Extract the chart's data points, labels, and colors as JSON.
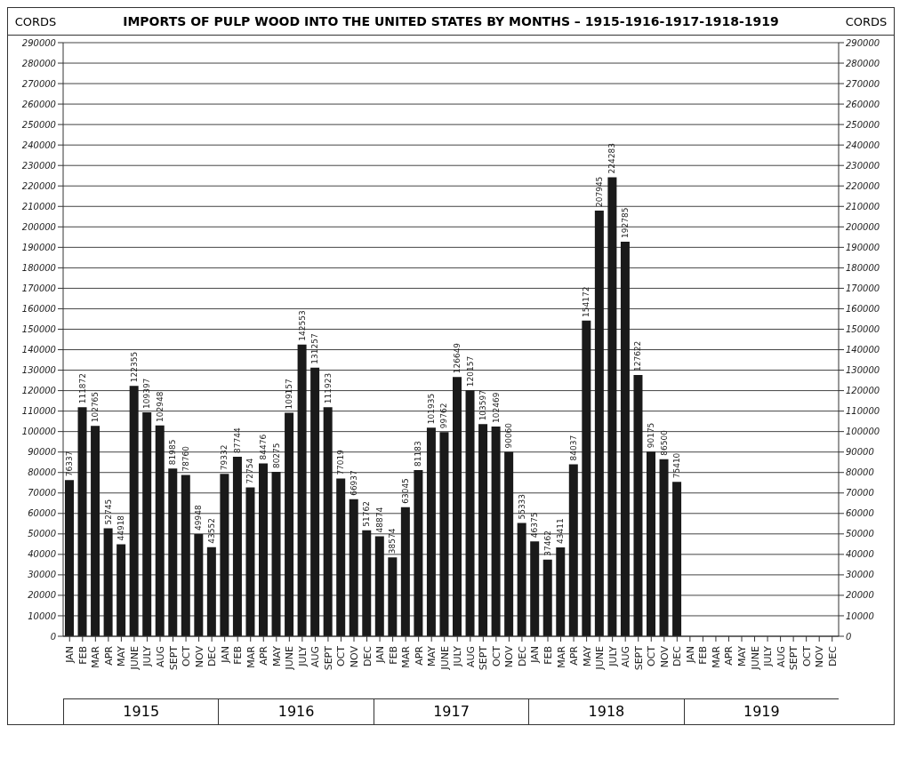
{
  "chart_data": {
    "type": "bar",
    "title": "IMPORTS OF PULP WOOD INTO THE UNITED STATES BY MONTHS – 1915-1916-1917-1918-1919",
    "ylabel": "CORDS",
    "y2label": "CORDS",
    "categories": [
      "JAN",
      "FEB",
      "MAR",
      "APR",
      "MAY",
      "JUNE",
      "JULY",
      "AUG",
      "SEPT",
      "OCT",
      "NOV",
      "DEC",
      "JAN",
      "FEB",
      "MAR",
      "APR",
      "MAY",
      "JUNE",
      "JULY",
      "AUG",
      "SEPT",
      "OCT",
      "NOV",
      "DEC",
      "JAN",
      "FEB",
      "MAR",
      "APR",
      "MAY",
      "JUNE",
      "JULY",
      "AUG",
      "SEPT",
      "OCT",
      "NOV",
      "DEC",
      "JAN",
      "FEB",
      "MAR",
      "APR",
      "MAY",
      "JUNE",
      "JULY",
      "AUG",
      "SEPT",
      "OCT",
      "NOV",
      "DEC",
      "JAN",
      "FEB",
      "MAR",
      "APR",
      "MAY",
      "JUNE",
      "JULY",
      "AUG",
      "SEPT",
      "OCT",
      "NOV",
      "DEC"
    ],
    "values": [
      76337,
      111872,
      102765,
      52745,
      44918,
      122355,
      109397,
      102948,
      81985,
      78760,
      49948,
      43552,
      79332,
      87744,
      72754,
      84476,
      80275,
      109157,
      142553,
      131257,
      111923,
      77019,
      66937,
      51762,
      48874,
      38574,
      63045,
      81183,
      101935,
      99762,
      126649,
      120157,
      103597,
      102469,
      90060,
      55333,
      46375,
      37462,
      43411,
      84037,
      154172,
      207945,
      224283,
      192785,
      127622,
      90175,
      86500,
      75410,
      null,
      null,
      null,
      null,
      null,
      null,
      null,
      null,
      null,
      null,
      null,
      null
    ],
    "color": "#1a1a1a",
    "data_labels": true,
    "ylim": [
      0,
      290000
    ],
    "yticks": [
      0,
      10000,
      20000,
      30000,
      40000,
      50000,
      60000,
      70000,
      80000,
      90000,
      100000,
      110000,
      120000,
      130000,
      140000,
      150000,
      160000,
      170000,
      180000,
      190000,
      200000,
      210000,
      220000,
      230000,
      240000,
      250000,
      260000,
      270000,
      280000,
      290000
    ],
    "y2lim": [
      0,
      290000
    ],
    "y2ticks": [
      0,
      10000,
      20000,
      30000,
      40000,
      50000,
      60000,
      70000,
      80000,
      90000,
      100000,
      110000,
      120000,
      130000,
      140000,
      150000,
      160000,
      170000,
      180000,
      190000,
      200000,
      210000,
      220000,
      230000,
      240000,
      250000,
      260000,
      270000,
      280000,
      290000
    ],
    "grid": "y",
    "annotations": [
      "1915",
      "1916",
      "1917",
      "1918",
      "1919"
    ]
  }
}
